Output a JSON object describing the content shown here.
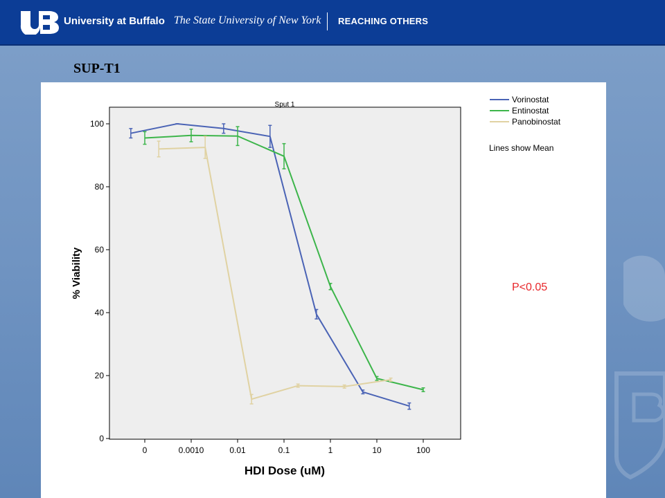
{
  "banner": {
    "university": "University at Buffalo",
    "system": "The State University of New York",
    "tagline": "REACHING OTHERS"
  },
  "slide": {
    "title": "SUP-T1",
    "annotation": "P<0.05"
  },
  "colors": {
    "banner": "#0c3d96",
    "Vorinostat": "#4a63b5",
    "Entinostat": "#3cb54a",
    "Panobinostat": "#e0d2a2",
    "annotation": "#e8262a",
    "plot_background": "#eeeeee"
  },
  "chart_data": {
    "type": "line",
    "title": "Sput 1",
    "xlabel": "HDI Dose (uM)",
    "ylabel": "% Viability",
    "x_scale": "log",
    "x_ticks": [
      "0",
      "0.0010",
      "0.01",
      "0.1",
      "1",
      "10",
      "100"
    ],
    "y_ticks": [
      "0",
      "20",
      "40",
      "60",
      "80",
      "100"
    ],
    "ylim": [
      0,
      100
    ],
    "legend_position": "top-right",
    "legend_note": "Lines show Mean",
    "grid": false,
    "series": [
      {
        "name": "Vorinostat",
        "x": [
          5e-05,
          0.0005,
          0.005,
          0.05,
          0.5,
          5,
          50
        ],
        "y": [
          97,
          100,
          98.5,
          96,
          39.5,
          14.8,
          10.3
        ],
        "err": [
          1.5,
          0,
          1.5,
          3.5,
          1.5,
          0.6,
          1
        ]
      },
      {
        "name": "Entinostat",
        "x": [
          0.0001,
          0.001,
          0.01,
          0.1,
          1,
          10,
          100
        ],
        "y": [
          95.5,
          96.3,
          96.1,
          89.7,
          48.3,
          19.1,
          15.5
        ],
        "err": [
          2,
          2,
          3,
          4,
          1,
          0.6,
          0.6
        ]
      },
      {
        "name": "Panobinostat",
        "x": [
          0.0002,
          0.002,
          0.02,
          0.2,
          2,
          20
        ],
        "y": [
          92,
          92.5,
          12.5,
          16.8,
          16.5,
          18.7
        ],
        "err": [
          2.5,
          3.5,
          1.5,
          0.5,
          0.5,
          0.5
        ]
      }
    ]
  }
}
